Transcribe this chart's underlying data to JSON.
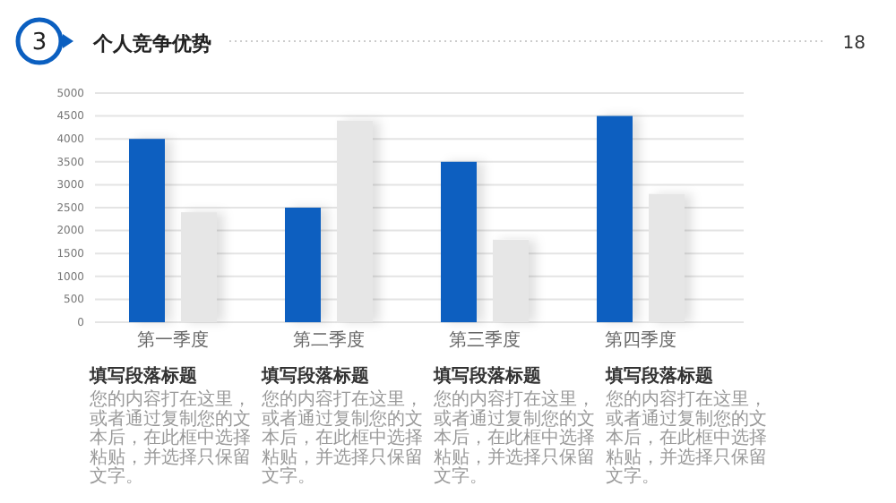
{
  "chart_data": {
    "type": "bar",
    "title": "个人竞争优势",
    "categories": [
      "第一季度",
      "第二季度",
      "第三季度",
      "第四季度"
    ],
    "series": [
      {
        "color": "#0b5fc0",
        "values": [
          4000,
          2500,
          3500,
          4500
        ]
      },
      {
        "color": "#e6e6e6",
        "values": [
          2400,
          4400,
          1800,
          2800
        ]
      }
    ],
    "ylim": [
      0,
      5000
    ],
    "yticks": [
      0,
      500,
      1000,
      1500,
      2000,
      2500,
      3000,
      3500,
      4000,
      4500,
      5000
    ],
    "grid": "y",
    "annotations": [
      "3",
      "18",
      "填写段落标题",
      "您的内容打在这里，或者通过复制您的文本后，在此框中选择粘贴，并选择只保留文字。",
      "填写段落标题",
      "您的内容打在这里，或者通过复制您的文本后，在此框中选择粘贴，并选择只保留文字。",
      "填写段落标题",
      "您的内容打在这里，或者通过复制您的文本后，在此框中选择粘贴，并选择只保留文字。",
      "填写段落标题",
      "您的内容打在这里，或者通过复制您的文本后，在此框中选择粘贴，并选择只保留文字。"
    ]
  }
}
